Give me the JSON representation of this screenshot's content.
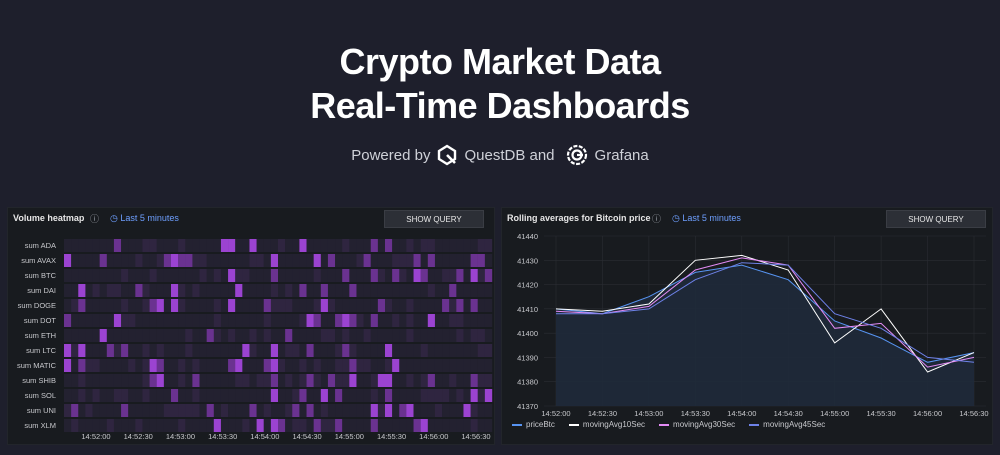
{
  "hero": {
    "title_line1": "Crypto Market Data",
    "title_line2": "Real-Time Dashboards",
    "powered_prefix": "Powered by",
    "questdb": "QuestDB and",
    "grafana": "Grafana"
  },
  "panel1": {
    "title": "Volume heatmap",
    "time_range": "Last 5 minutes",
    "show_query": "SHOW QUERY",
    "rows": [
      "sum ADA",
      "sum AVAX",
      "sum BTC",
      "sum DAI",
      "sum DOGE",
      "sum DOT",
      "sum ETH",
      "sum LTC",
      "sum MATIC",
      "sum SHIB",
      "sum SOL",
      "sum UNI",
      "sum XLM"
    ],
    "x_ticks": [
      "14:52:00",
      "14:52:30",
      "14:53:00",
      "14:53:30",
      "14:54:00",
      "14:54:30",
      "14:55:00",
      "14:55:30",
      "14:56:00",
      "14:56:30"
    ],
    "colors": {
      "low": "#231f2f",
      "high": "#9b43d1"
    }
  },
  "panel2": {
    "title": "Rolling averages for Bitcoin price",
    "time_range": "Last 5 minutes",
    "show_query": "SHOW QUERY",
    "legend": [
      "priceBtc",
      "movingAvg10Sec",
      "movingAvg30Sec",
      "movingAvg45Sec"
    ],
    "colors": [
      "#5794f2",
      "#ffffff",
      "#e38bf5",
      "#6e82e8"
    ]
  },
  "chart_data": {
    "type": "line",
    "x": [
      "14:52:00",
      "14:52:30",
      "14:53:00",
      "14:53:30",
      "14:54:00",
      "14:54:30",
      "14:55:00",
      "14:55:30",
      "14:56:00",
      "14:56:30"
    ],
    "ylim": [
      41370,
      41440
    ],
    "y_ticks": [
      41370,
      41380,
      41390,
      41400,
      41410,
      41420,
      41430,
      41440
    ],
    "series": [
      {
        "name": "priceBtc",
        "values": [
          41410,
          41408,
          41415,
          41425,
          41428,
          41422,
          41405,
          41398,
          41388,
          41392
        ]
      },
      {
        "name": "movingAvg10Sec",
        "values": [
          41410,
          41409,
          41412,
          41430,
          41432,
          41426,
          41396,
          41410,
          41384,
          41392
        ]
      },
      {
        "name": "movingAvg30Sec",
        "values": [
          41409,
          41408,
          41411,
          41426,
          41431,
          41428,
          41402,
          41404,
          41386,
          41390
        ]
      },
      {
        "name": "movingAvg45Sec",
        "values": [
          41408,
          41408,
          41410,
          41422,
          41429,
          41428,
          41408,
          41402,
          41390,
          41388
        ]
      }
    ]
  }
}
